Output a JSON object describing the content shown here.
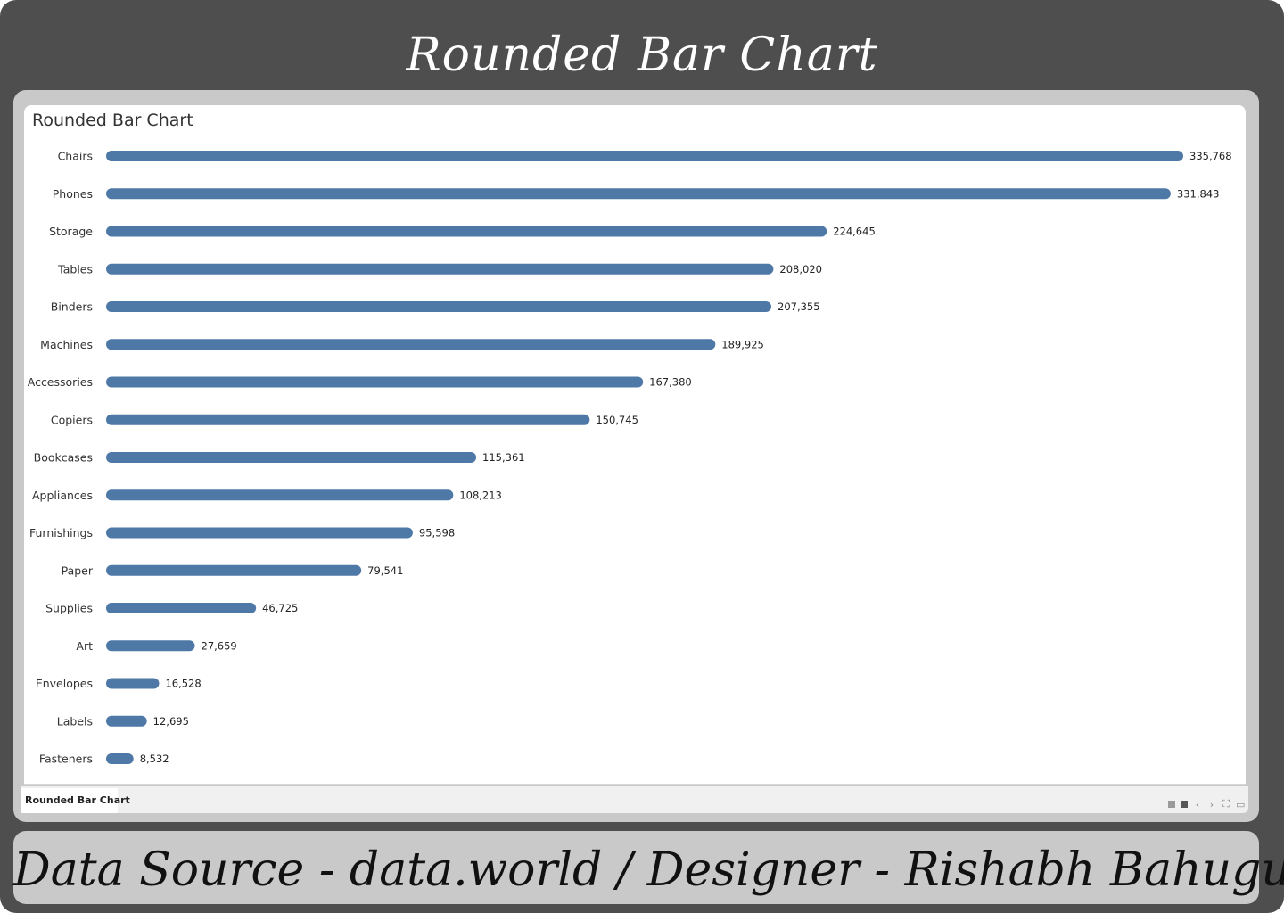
{
  "header": {
    "title": "Rounded Bar Chart"
  },
  "viz": {
    "title": "Rounded Bar Chart",
    "tab_label": "Rounded Bar Chart"
  },
  "footer": {
    "text": "Data Source - data.world / Designer - Rishabh Bahuguna"
  },
  "colors": {
    "bar": "#4e79a7",
    "frame": "#4e4e4e",
    "card": "#c9c9c9"
  },
  "chart_data": {
    "type": "bar",
    "orientation": "horizontal",
    "bar_shape": "rounded",
    "title": "Rounded Bar Chart",
    "categories": [
      "Chairs",
      "Phones",
      "Storage",
      "Tables",
      "Binders",
      "Machines",
      "Accessories",
      "Copiers",
      "Bookcases",
      "Appliances",
      "Furnishings",
      "Paper",
      "Supplies",
      "Art",
      "Envelopes",
      "Labels",
      "Fasteners"
    ],
    "values": [
      335768,
      331843,
      224645,
      208020,
      207355,
      189925,
      167380,
      150745,
      115361,
      108213,
      95598,
      79541,
      46725,
      27659,
      16528,
      12695,
      8532
    ],
    "value_labels": [
      "335,768",
      "331,843",
      "224,645",
      "208,020",
      "207,355",
      "189,925",
      "167,380",
      "150,745",
      "115,361",
      "108,213",
      "95,598",
      "79,541",
      "46,725",
      "27,659",
      "16,528",
      "12,695",
      "8,532"
    ],
    "xlim": [
      0,
      335768
    ],
    "grid": false,
    "legend": "none"
  }
}
